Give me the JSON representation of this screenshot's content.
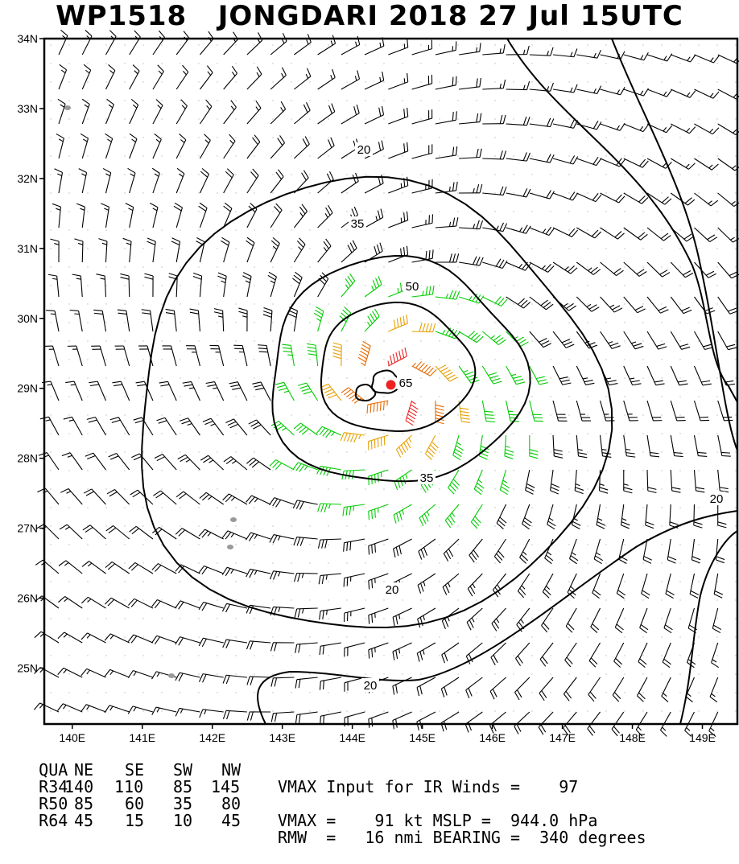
{
  "title": "WP1518   JONGDARI 2018 27 Jul 15UTC",
  "map": {
    "lat_labels": [
      "34N",
      "33N",
      "32N",
      "31N",
      "30N",
      "29N",
      "28N",
      "27N",
      "26N",
      "25N"
    ],
    "lon_labels": [
      "140E",
      "141E",
      "142E",
      "143E",
      "144E",
      "145E",
      "146E",
      "147E",
      "148E",
      "149E"
    ],
    "lat_range": [
      24.2,
      34.0
    ],
    "lon_range": [
      139.6,
      149.5
    ],
    "storm_center": {
      "lat": 29.05,
      "lon": 144.55
    },
    "contour_labels": [
      "20",
      "35",
      "50",
      "65",
      "35",
      "20",
      "20",
      "20"
    ],
    "barb_colors": {
      "lt34": "#000000",
      "34_50": "#00cc00",
      "50_64": "#e8a000",
      "64_80": "#e86a00",
      "ge80": "#ee2222"
    }
  },
  "table": {
    "header": [
      "QUA",
      "NE",
      "SE",
      "SW",
      "NW"
    ],
    "rows": [
      {
        "label": "R34",
        "values": [
          "140",
          "110",
          "85",
          "145"
        ]
      },
      {
        "label": "R50",
        "values": [
          "85",
          "60",
          "35",
          "80"
        ]
      },
      {
        "label": "R64",
        "values": [
          "45",
          "15",
          "10",
          "45"
        ]
      }
    ]
  },
  "info": {
    "line1": "VMAX Input for IR Winds =    97",
    "line2": "VMAX =    91 kt MSLP =  944.0 hPa",
    "line3": "RMW  =   16 nmi BEARING =  340 degrees"
  }
}
